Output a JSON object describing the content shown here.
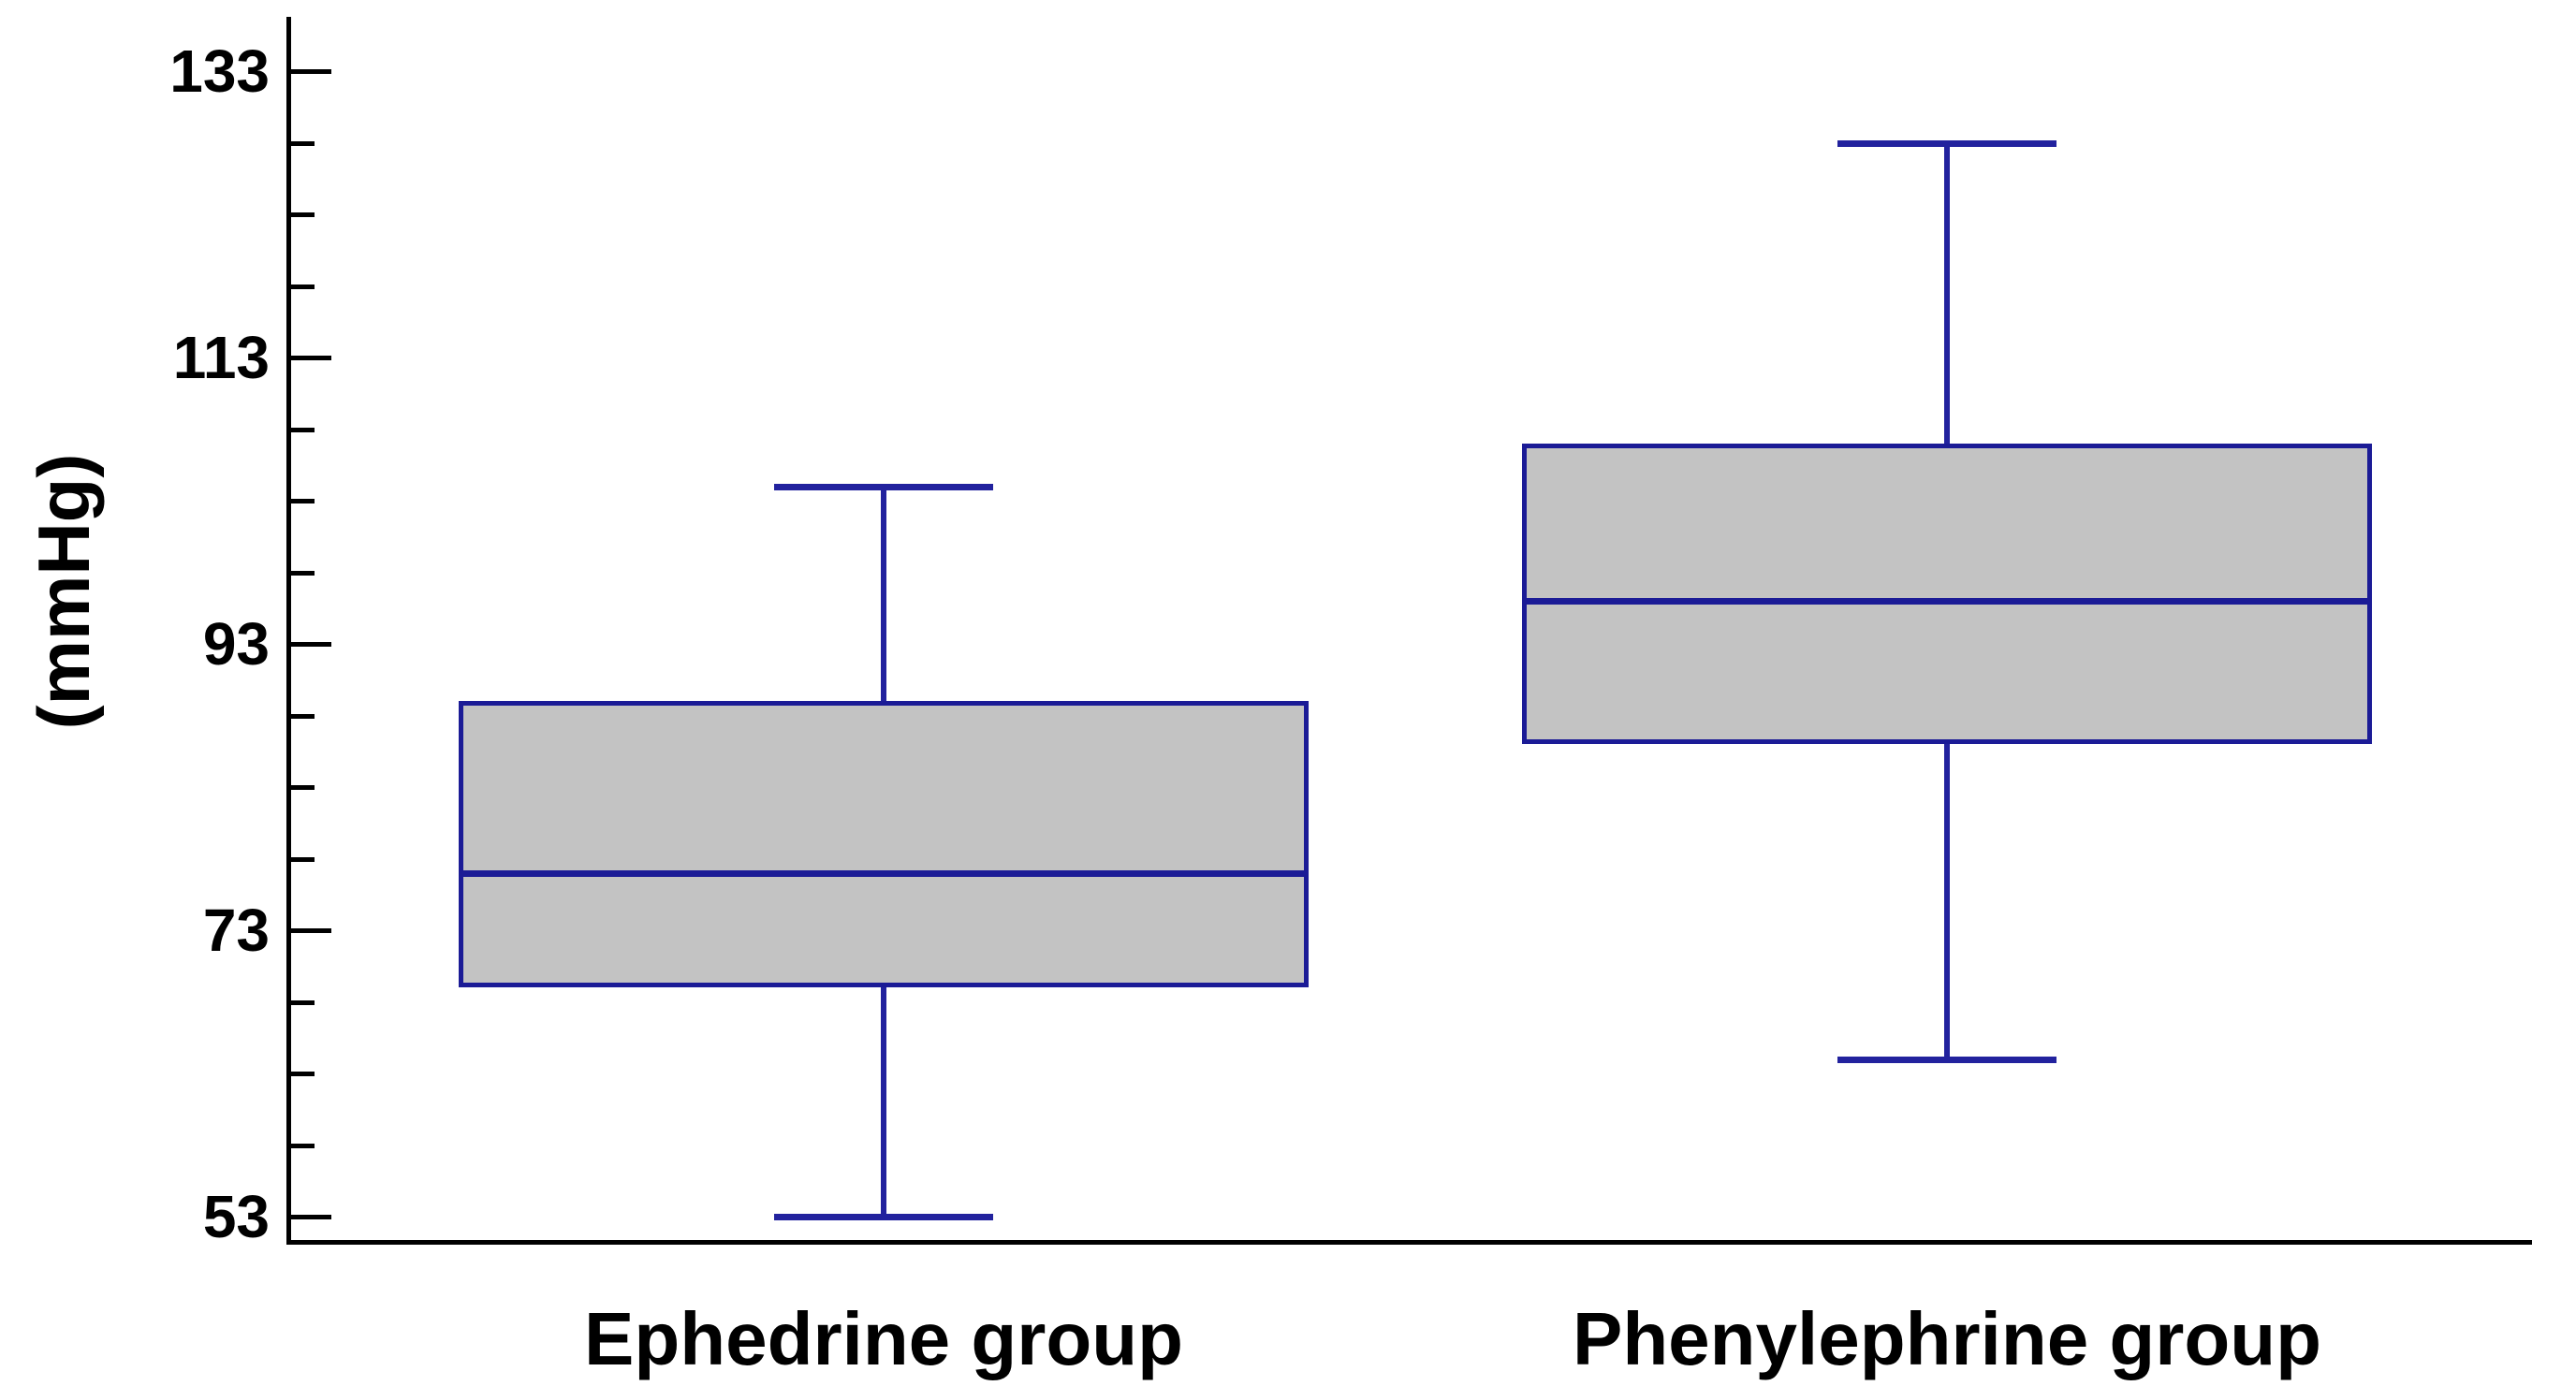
{
  "y_axis": {
    "label": "(mmHg)",
    "tick_labels": [
      "133",
      "113",
      "93",
      "73",
      "53"
    ]
  },
  "x_axis": {
    "categories": [
      "Ephedrine group",
      "Phenylephrine group"
    ]
  },
  "chart_data": {
    "type": "boxplot",
    "title": "",
    "xlabel": "",
    "ylabel": "(mmHg)",
    "ylim": [
      53,
      133
    ],
    "yticks_major": [
      53,
      73,
      93,
      113,
      133
    ],
    "ytick_minor_step": 5,
    "grid": "off",
    "series": [
      {
        "name": "Ephedrine group",
        "whisker_low": 53,
        "q1": 69,
        "median": 77,
        "q3": 89,
        "whisker_high": 104
      },
      {
        "name": "Phenylephrine group",
        "whisker_low": 64,
        "q1": 86,
        "median": 96,
        "q3": 107,
        "whisker_high": 128
      }
    ]
  },
  "colors": {
    "axis": "#000000",
    "text": "#000000",
    "box_fill": "#c3c3c3",
    "box_border": "#1b1b96",
    "whisker": "#22229e"
  }
}
